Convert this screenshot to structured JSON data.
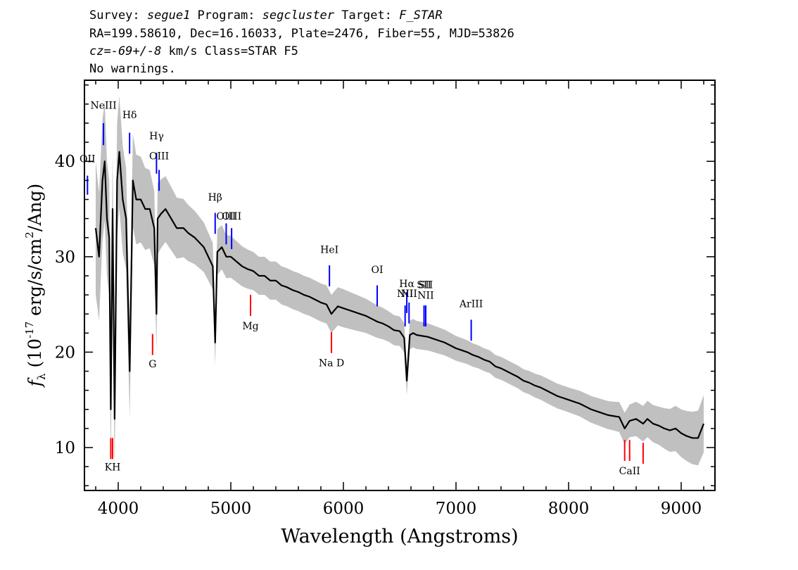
{
  "header": {
    "line1": {
      "survey_label": "Survey: ",
      "survey": "segue1",
      "program_label": " Program: ",
      "program": "segcluster",
      "target_label": " Target: ",
      "target": "F_STAR"
    },
    "line2": "RA=199.58610, Dec=16.16033, Plate=2476, Fiber=55, MJD=53826",
    "line3": {
      "cz": "cz=-69+/-8",
      "rest": " km/s Class=STAR F5"
    },
    "line4": "No warnings."
  },
  "chart_data": {
    "type": "line",
    "xlabel": "Wavelength (Angstroms)",
    "ylabel": "f_λ (10^-17 erg/s/cm^2/Ang)",
    "xlim": [
      3700,
      9300
    ],
    "ylim": [
      5.5,
      48.5
    ],
    "xticks": [
      4000,
      5000,
      6000,
      7000,
      8000,
      9000
    ],
    "yticks": [
      10,
      20,
      30,
      40
    ],
    "grid": false,
    "series": [
      {
        "role": "flux",
        "color": "#000000",
        "x": [
          3800,
          3830,
          3860,
          3880,
          3900,
          3920,
          3934,
          3950,
          3968,
          3990,
          4010,
          4040,
          4070,
          4102,
          4130,
          4160,
          4200,
          4240,
          4280,
          4320,
          4340,
          4350,
          4380,
          4420,
          4470,
          4520,
          4580,
          4620,
          4680,
          4720,
          4760,
          4800,
          4840,
          4861,
          4880,
          4920,
          4960,
          5000,
          5050,
          5100,
          5150,
          5200,
          5250,
          5300,
          5350,
          5400,
          5450,
          5500,
          5550,
          5600,
          5650,
          5700,
          5750,
          5800,
          5850,
          5893,
          5950,
          6000,
          6050,
          6100,
          6150,
          6200,
          6250,
          6300,
          6350,
          6400,
          6450,
          6500,
          6540,
          6563,
          6590,
          6620,
          6650,
          6700,
          6750,
          6800,
          6850,
          6900,
          6950,
          7000,
          7050,
          7100,
          7150,
          7200,
          7250,
          7300,
          7350,
          7400,
          7450,
          7500,
          7550,
          7600,
          7650,
          7700,
          7750,
          7800,
          7850,
          7900,
          7950,
          8000,
          8050,
          8100,
          8150,
          8200,
          8250,
          8300,
          8350,
          8400,
          8450,
          8498,
          8542,
          8600,
          8662,
          8700,
          8750,
          8800,
          8850,
          8900,
          8950,
          9000,
          9050,
          9100,
          9150,
          9200
        ],
        "y": [
          33,
          30,
          38,
          40,
          34,
          32,
          14,
          35,
          13,
          38,
          41,
          36,
          34,
          18,
          38,
          36,
          36,
          35,
          35,
          33,
          24,
          34,
          34.5,
          35,
          34,
          33,
          33,
          32.5,
          32,
          31.5,
          31,
          30,
          29,
          21,
          30.5,
          31,
          30,
          30,
          29.5,
          29,
          28.7,
          28.5,
          28,
          28,
          27.5,
          27.5,
          27,
          26.8,
          26.5,
          26.3,
          26,
          25.8,
          25.5,
          25.2,
          25,
          24,
          24.8,
          24.6,
          24.4,
          24.2,
          24,
          23.8,
          23.5,
          23.2,
          23,
          22.7,
          22.3,
          22.2,
          21.5,
          17,
          21.8,
          22,
          21.8,
          21.7,
          21.6,
          21.4,
          21.2,
          21,
          20.7,
          20.4,
          20.2,
          20,
          19.7,
          19.5,
          19.2,
          19,
          18.5,
          18.3,
          18,
          17.7,
          17.4,
          17,
          16.8,
          16.5,
          16.3,
          16,
          15.7,
          15.4,
          15.2,
          15,
          14.8,
          14.6,
          14.3,
          14,
          13.8,
          13.6,
          13.4,
          13.3,
          13.2,
          12,
          12.8,
          13,
          12.5,
          13,
          12.5,
          12.3,
          12,
          11.8,
          12,
          11.5,
          11.2,
          11,
          11,
          12.5
        ]
      }
    ],
    "error_band": {
      "color": "#c0c0c0",
      "x": [
        3800,
        3900,
        4000,
        4100,
        4200,
        4400,
        4600,
        4800,
        5000,
        5200,
        5400,
        5600,
        5800,
        6000,
        6200,
        6400,
        6600,
        6800,
        7000,
        7200,
        7400,
        7600,
        7800,
        8000,
        8200,
        8400,
        8600,
        8800,
        9000,
        9200
      ],
      "half_width": [
        7,
        6,
        6,
        5,
        4.5,
        3.5,
        3,
        2.5,
        2.2,
        2,
        2,
        2,
        2,
        2,
        1.8,
        1.6,
        1.5,
        1.4,
        1.3,
        1.2,
        1.2,
        1.2,
        1.3,
        1.3,
        1.4,
        1.5,
        1.8,
        2,
        2.5,
        3
      ]
    },
    "emission_lines": [
      {
        "label": "OII",
        "x": 3727,
        "y0": 36.5,
        "y1": 38.5,
        "label_y": 39.9
      },
      {
        "label": "NeIII",
        "x": 3869,
        "y0": 41.7,
        "y1": 44,
        "label_y": 45.5
      },
      {
        "label": "Hδ",
        "x": 4101,
        "y0": 40.8,
        "y1": 43,
        "label_y": 44.5
      },
      {
        "label": "Hγ",
        "x": 4340,
        "y0": 38.7,
        "y1": 40.9,
        "label_y": 42.3
      },
      {
        "label": "OIII",
        "x": 4363,
        "y0": 36.9,
        "y1": 39.1,
        "label_y": 40.2
      },
      {
        "label": "Hβ",
        "x": 4861,
        "y0": 32.4,
        "y1": 34.6,
        "label_y": 35.9
      },
      {
        "label": "OIII",
        "x": 4959,
        "y0": 31.3,
        "y1": 33.5,
        "label_y": 33.9
      },
      {
        "label": "OIII",
        "x": 5007,
        "y0": 30.8,
        "y1": 33,
        "label_y": 33.9
      },
      {
        "label": "HeI",
        "x": 5876,
        "y0": 26.9,
        "y1": 29.1,
        "label_y": 30.4
      },
      {
        "label": "OI",
        "x": 6300,
        "y0": 24.8,
        "y1": 27,
        "label_y": 28.3
      },
      {
        "label": "NII",
        "x": 6548,
        "y0": 22.7,
        "y1": 24.9,
        "label_y": 25.8
      },
      {
        "label": "Hα",
        "x": 6563,
        "y0": 24.1,
        "y1": 26.3,
        "label_y": 26.8
      },
      {
        "label": "NII",
        "x": 6583,
        "y0": 23,
        "y1": 25.2,
        "label_y": 25.8
      },
      {
        "label": "SII",
        "x": 6716,
        "y0": 22.7,
        "y1": 24.9,
        "label_y": 26.7
      },
      {
        "label": "SII",
        "x": 6731,
        "y0": 22.7,
        "y1": 24.9,
        "label_y": 26.7
      },
      {
        "label": "NII",
        "x": 6731,
        "y0": 22.7,
        "y1": 24.9,
        "label_y": 25.6
      },
      {
        "label": "ArIII",
        "x": 7135,
        "y0": 21.2,
        "y1": 23.4,
        "label_y": 24.7
      }
    ],
    "absorption_lines": [
      {
        "label": "KH",
        "x": 3950,
        "y0": 8.8,
        "y1": 11,
        "label_y": 7.6
      },
      {
        "label": "",
        "x": 3934,
        "y0": 8.8,
        "y1": 11,
        "label_y": 7.6
      },
      {
        "label": "G",
        "x": 4305,
        "y0": 19.7,
        "y1": 21.9,
        "label_y": 18.4
      },
      {
        "label": "Mg",
        "x": 5175,
        "y0": 23.8,
        "y1": 26,
        "label_y": 22.4
      },
      {
        "label": "Na  D",
        "x": 5894,
        "y0": 19.9,
        "y1": 22.1,
        "label_y": 18.5
      },
      {
        "label": "CaII",
        "x": 8542,
        "y0": 8.6,
        "y1": 10.8,
        "label_y": 7.2
      },
      {
        "label": "",
        "x": 8498,
        "y0": 8.6,
        "y1": 10.8,
        "label_y": 7.2
      },
      {
        "label": "",
        "x": 8662,
        "y0": 8.3,
        "y1": 10.5,
        "label_y": 7.2
      }
    ],
    "emission_color": "#0000ff",
    "absorption_color": "#ff0000"
  }
}
